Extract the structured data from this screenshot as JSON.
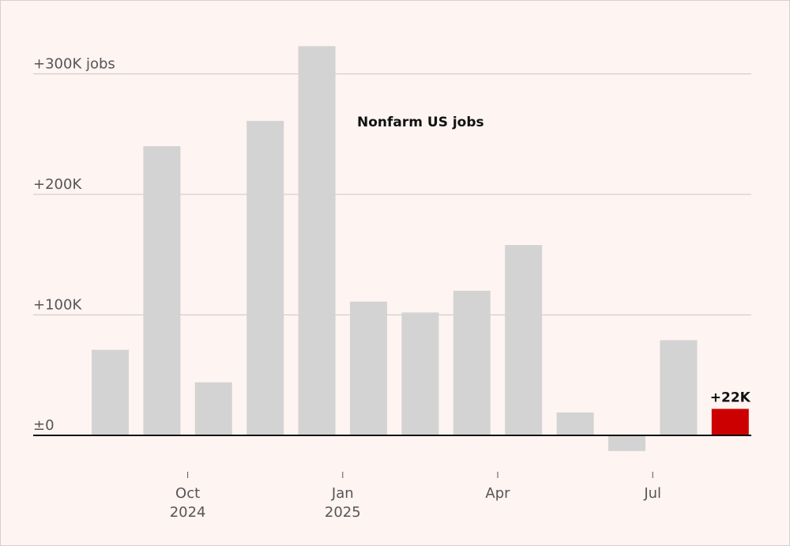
{
  "chart_data": {
    "type": "bar",
    "title": "",
    "annotation": "Nonfarm US jobs",
    "unit": "jobs",
    "xlabel": "",
    "ylabel": "",
    "categories": [
      "Aug 2024",
      "Sep 2024",
      "Oct 2024",
      "Nov 2024",
      "Dec 2024",
      "Jan 2025",
      "Feb 2025",
      "Mar 2025",
      "Apr 2025",
      "May 2025",
      "Jun 2025",
      "Jul 2025",
      "Aug 2025"
    ],
    "values": [
      71000,
      240000,
      44000,
      261000,
      323000,
      111000,
      102000,
      120000,
      158000,
      19000,
      -13000,
      79000,
      22000
    ],
    "ylim": [
      -15000,
      330000
    ],
    "yticks": [
      {
        "value": 0,
        "label": "±0"
      },
      {
        "value": 100000,
        "label": "+100K"
      },
      {
        "value": 200000,
        "label": "+200K"
      },
      {
        "value": 300000,
        "label": "+300K jobs"
      }
    ],
    "xticks": [
      {
        "index": 2,
        "line1": "Oct",
        "line2": "2024"
      },
      {
        "index": 5,
        "line1": "Jan",
        "line2": "2025"
      },
      {
        "index": 8,
        "line1": "Apr",
        "line2": ""
      },
      {
        "index": 11,
        "line1": "Jul",
        "line2": ""
      }
    ],
    "highlight": {
      "index": 12,
      "label": "+22K"
    },
    "colors": {
      "bar": "#d3d3d3",
      "highlight": "#cc0000",
      "grid": "#cfc7c5",
      "zero": "#111111",
      "background": "#fef4f2"
    },
    "grid": true,
    "legend": "none"
  }
}
